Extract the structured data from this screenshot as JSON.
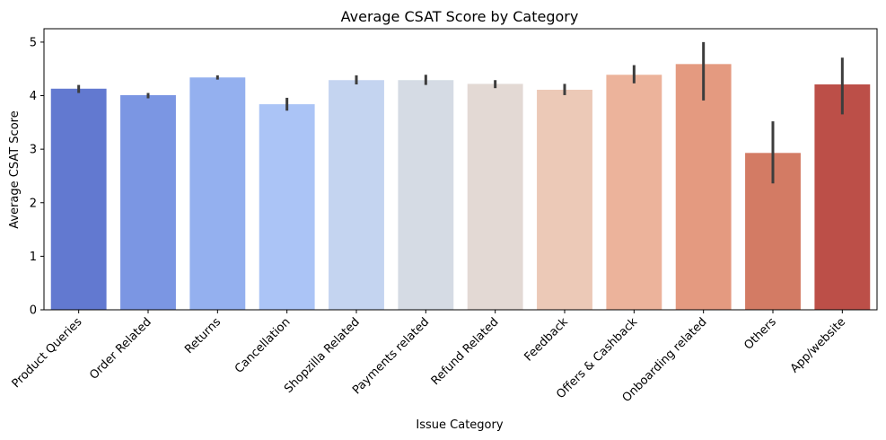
{
  "chart_data": {
    "type": "bar",
    "title": "Average CSAT Score by Category",
    "xlabel": "Issue Category",
    "ylabel": "Average CSAT Score",
    "ylim": [
      0,
      5.25
    ],
    "yticks": [
      0,
      1,
      2,
      3,
      4,
      5
    ],
    "grid": false,
    "categories": [
      "Product Queries",
      "Order Related",
      "Returns",
      "Cancellation",
      "Shopzilla Related",
      "Payments related",
      "Refund Related",
      "Feedback",
      "Offers & Cashback",
      "Onboarding related",
      "Others",
      "App/website"
    ],
    "values": [
      4.13,
      4.01,
      4.34,
      3.84,
      4.29,
      4.29,
      4.22,
      4.11,
      4.39,
      4.59,
      2.93,
      4.21
    ],
    "error_low": [
      4.05,
      3.95,
      4.3,
      3.72,
      4.21,
      4.2,
      4.14,
      4.01,
      4.23,
      3.91,
      2.36,
      3.65
    ],
    "error_high": [
      4.2,
      4.05,
      4.38,
      3.96,
      4.38,
      4.39,
      4.29,
      4.22,
      4.57,
      5.0,
      3.52,
      4.71
    ],
    "colors": [
      "#6279d0",
      "#7b96e3",
      "#94b0ef",
      "#abc4f6",
      "#c4d4f0",
      "#d5dbe4",
      "#e3d9d4",
      "#ecc9b7",
      "#ecb39b",
      "#e49a80",
      "#d37b64",
      "#bc4f48"
    ],
    "error_color": "#3d3d3d"
  }
}
